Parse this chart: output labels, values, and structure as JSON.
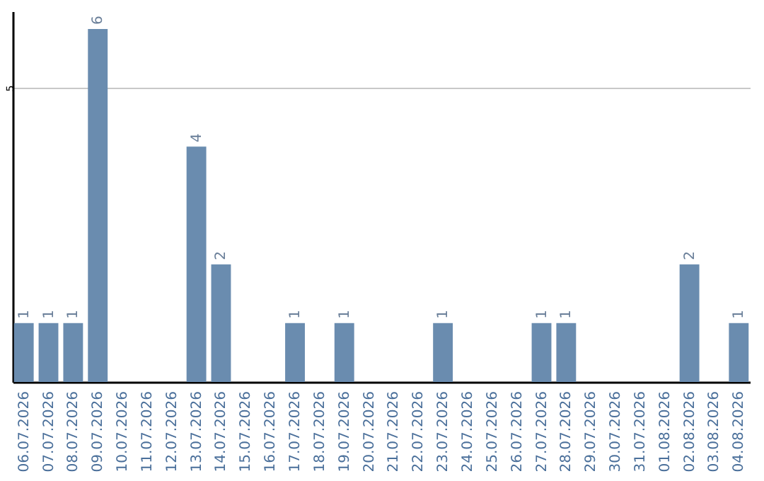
{
  "chart_data": {
    "type": "bar",
    "categories": [
      "06.07.2026",
      "07.07.2026",
      "08.07.2026",
      "09.07.2026",
      "10.07.2026",
      "11.07.2026",
      "12.07.2026",
      "13.07.2026",
      "14.07.2026",
      "15.07.2026",
      "16.07.2026",
      "17.07.2026",
      "18.07.2026",
      "19.07.2026",
      "20.07.2026",
      "21.07.2026",
      "22.07.2026",
      "23.07.2026",
      "24.07.2026",
      "25.07.2026",
      "26.07.2026",
      "27.07.2026",
      "28.07.2026",
      "29.07.2026",
      "30.07.2026",
      "31.07.2026",
      "01.08.2026",
      "02.08.2026",
      "03.08.2026",
      "04.08.2026"
    ],
    "values": [
      1,
      1,
      1,
      6,
      0,
      0,
      0,
      4,
      2,
      0,
      0,
      1,
      0,
      1,
      0,
      0,
      0,
      1,
      0,
      0,
      0,
      1,
      1,
      0,
      0,
      0,
      0,
      2,
      0,
      1
    ],
    "value_labels": [
      "1",
      "1",
      "1",
      "6",
      null,
      null,
      null,
      "4",
      "2",
      null,
      null,
      "1",
      null,
      "1",
      null,
      null,
      null,
      "1",
      null,
      null,
      null,
      "1",
      "1",
      null,
      null,
      null,
      null,
      "2",
      null,
      "1"
    ],
    "color": "#6a8caf",
    "ylim": [
      0,
      6.3
    ],
    "yticks": [
      5
    ],
    "grid": "y"
  }
}
